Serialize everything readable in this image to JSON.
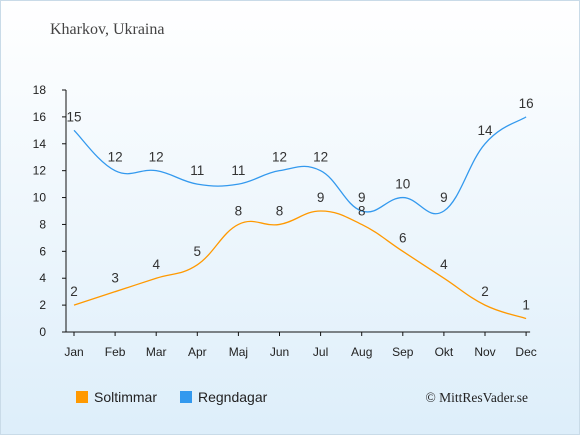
{
  "title": "Kharkov, Ukraina",
  "credit": "© MittResVader.se",
  "colors": {
    "sun": "#ff9900",
    "rain": "#3399ee"
  },
  "chart_data": {
    "type": "line",
    "categories": [
      "Jan",
      "Feb",
      "Mar",
      "Apr",
      "Maj",
      "Jun",
      "Jul",
      "Aug",
      "Sep",
      "Okt",
      "Nov",
      "Dec"
    ],
    "yticks": [
      0,
      2,
      4,
      6,
      8,
      10,
      12,
      14,
      16,
      18
    ],
    "ylim": [
      0,
      18
    ],
    "grid": false,
    "legend_position": "bottom-left",
    "series": [
      {
        "name": "Soltimmar",
        "color": "#ff9900",
        "values": [
          2,
          3,
          4,
          5,
          8,
          8,
          9,
          8,
          6,
          4,
          2,
          1
        ]
      },
      {
        "name": "Regndagar",
        "color": "#3399ee",
        "values": [
          15,
          12,
          12,
          11,
          11,
          12,
          12,
          9,
          10,
          9,
          14,
          16
        ]
      }
    ]
  }
}
